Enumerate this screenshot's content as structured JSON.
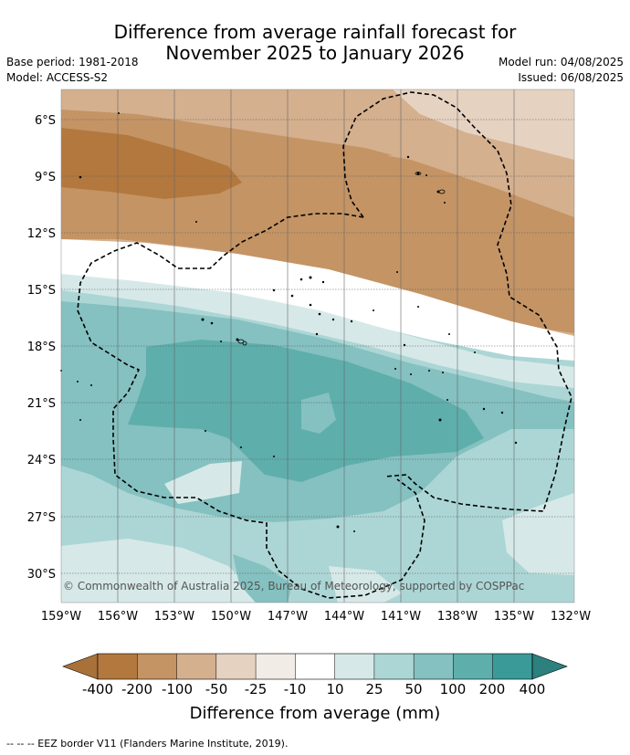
{
  "title": {
    "line1": "Difference from average rainfall forecast for",
    "line2": "November 2025 to January 2026"
  },
  "meta": {
    "base_period": "Base period: 1981-2018",
    "model": "Model: ACCESS-S2",
    "model_run": "Model run: 04/08/2025",
    "issued": "Issued: 06/08/2025"
  },
  "map": {
    "lat_labels": [
      "6°S",
      "9°S",
      "12°S",
      "15°S",
      "18°S",
      "21°S",
      "24°S",
      "27°S",
      "30°S"
    ],
    "lon_labels": [
      "159°W",
      "156°W",
      "153°W",
      "150°W",
      "147°W",
      "144°W",
      "141°W",
      "138°W",
      "135°W",
      "132°W"
    ],
    "copyright": "© Commonwealth of Australia 2025, Bureau of Meteorology, supported by COSPPac"
  },
  "colorbar": {
    "labels": [
      "-400",
      "-200",
      "-100",
      "-50",
      "-25",
      "-10",
      "10",
      "25",
      "50",
      "100",
      "200",
      "400"
    ],
    "colors": [
      "#a8713a",
      "#b3783e",
      "#c49465",
      "#d4b08e",
      "#e6d2c1",
      "#f2ece7",
      "#ffffff",
      "#d6e9e8",
      "#acd6d5",
      "#84c1c0",
      "#5eaeac",
      "#3a9a98",
      "#2c807e"
    ],
    "title": "Difference from average (mm)"
  },
  "footer": "--  --  -- EEZ border V11 (Flanders Marine Institute, 2019)."
}
